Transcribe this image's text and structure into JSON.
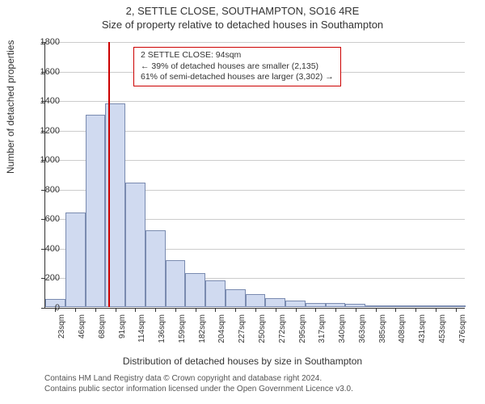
{
  "title": "2, SETTLE CLOSE, SOUTHAMPTON, SO16 4RE",
  "subtitle": "Size of property relative to detached houses in Southampton",
  "chart": {
    "type": "histogram",
    "y_label": "Number of detached properties",
    "x_label": "Distribution of detached houses by size in Southampton",
    "ylim": [
      0,
      1800
    ],
    "y_ticks": [
      0,
      200,
      400,
      600,
      800,
      1000,
      1200,
      1400,
      1600,
      1800
    ],
    "x_tick_labels": [
      "23sqm",
      "46sqm",
      "68sqm",
      "91sqm",
      "114sqm",
      "136sqm",
      "159sqm",
      "182sqm",
      "204sqm",
      "227sqm",
      "250sqm",
      "272sqm",
      "295sqm",
      "317sqm",
      "340sqm",
      "363sqm",
      "385sqm",
      "408sqm",
      "431sqm",
      "453sqm",
      "476sqm"
    ],
    "values": [
      55,
      640,
      1300,
      1380,
      840,
      520,
      320,
      230,
      180,
      120,
      90,
      60,
      45,
      30,
      25,
      20,
      10,
      8,
      5,
      5,
      3
    ],
    "bar_fill": "#d0daf0",
    "bar_border": "#7a8bb0",
    "grid_color": "#cccccc",
    "axis_color": "#333333",
    "background_color": "#ffffff",
    "reference_line_color": "#cc0000",
    "reference_line_index": 3,
    "bar_width_ratio": 1.0
  },
  "annotation": {
    "line1": "2 SETTLE CLOSE: 94sqm",
    "line2": "← 39% of detached houses are smaller (2,135)",
    "line3": "61% of semi-detached houses are larger (3,302) →",
    "border_color": "#cc0000"
  },
  "attribution": {
    "line1": "Contains HM Land Registry data © Crown copyright and database right 2024.",
    "line2": "Contains public sector information licensed under the Open Government Licence v3.0."
  }
}
